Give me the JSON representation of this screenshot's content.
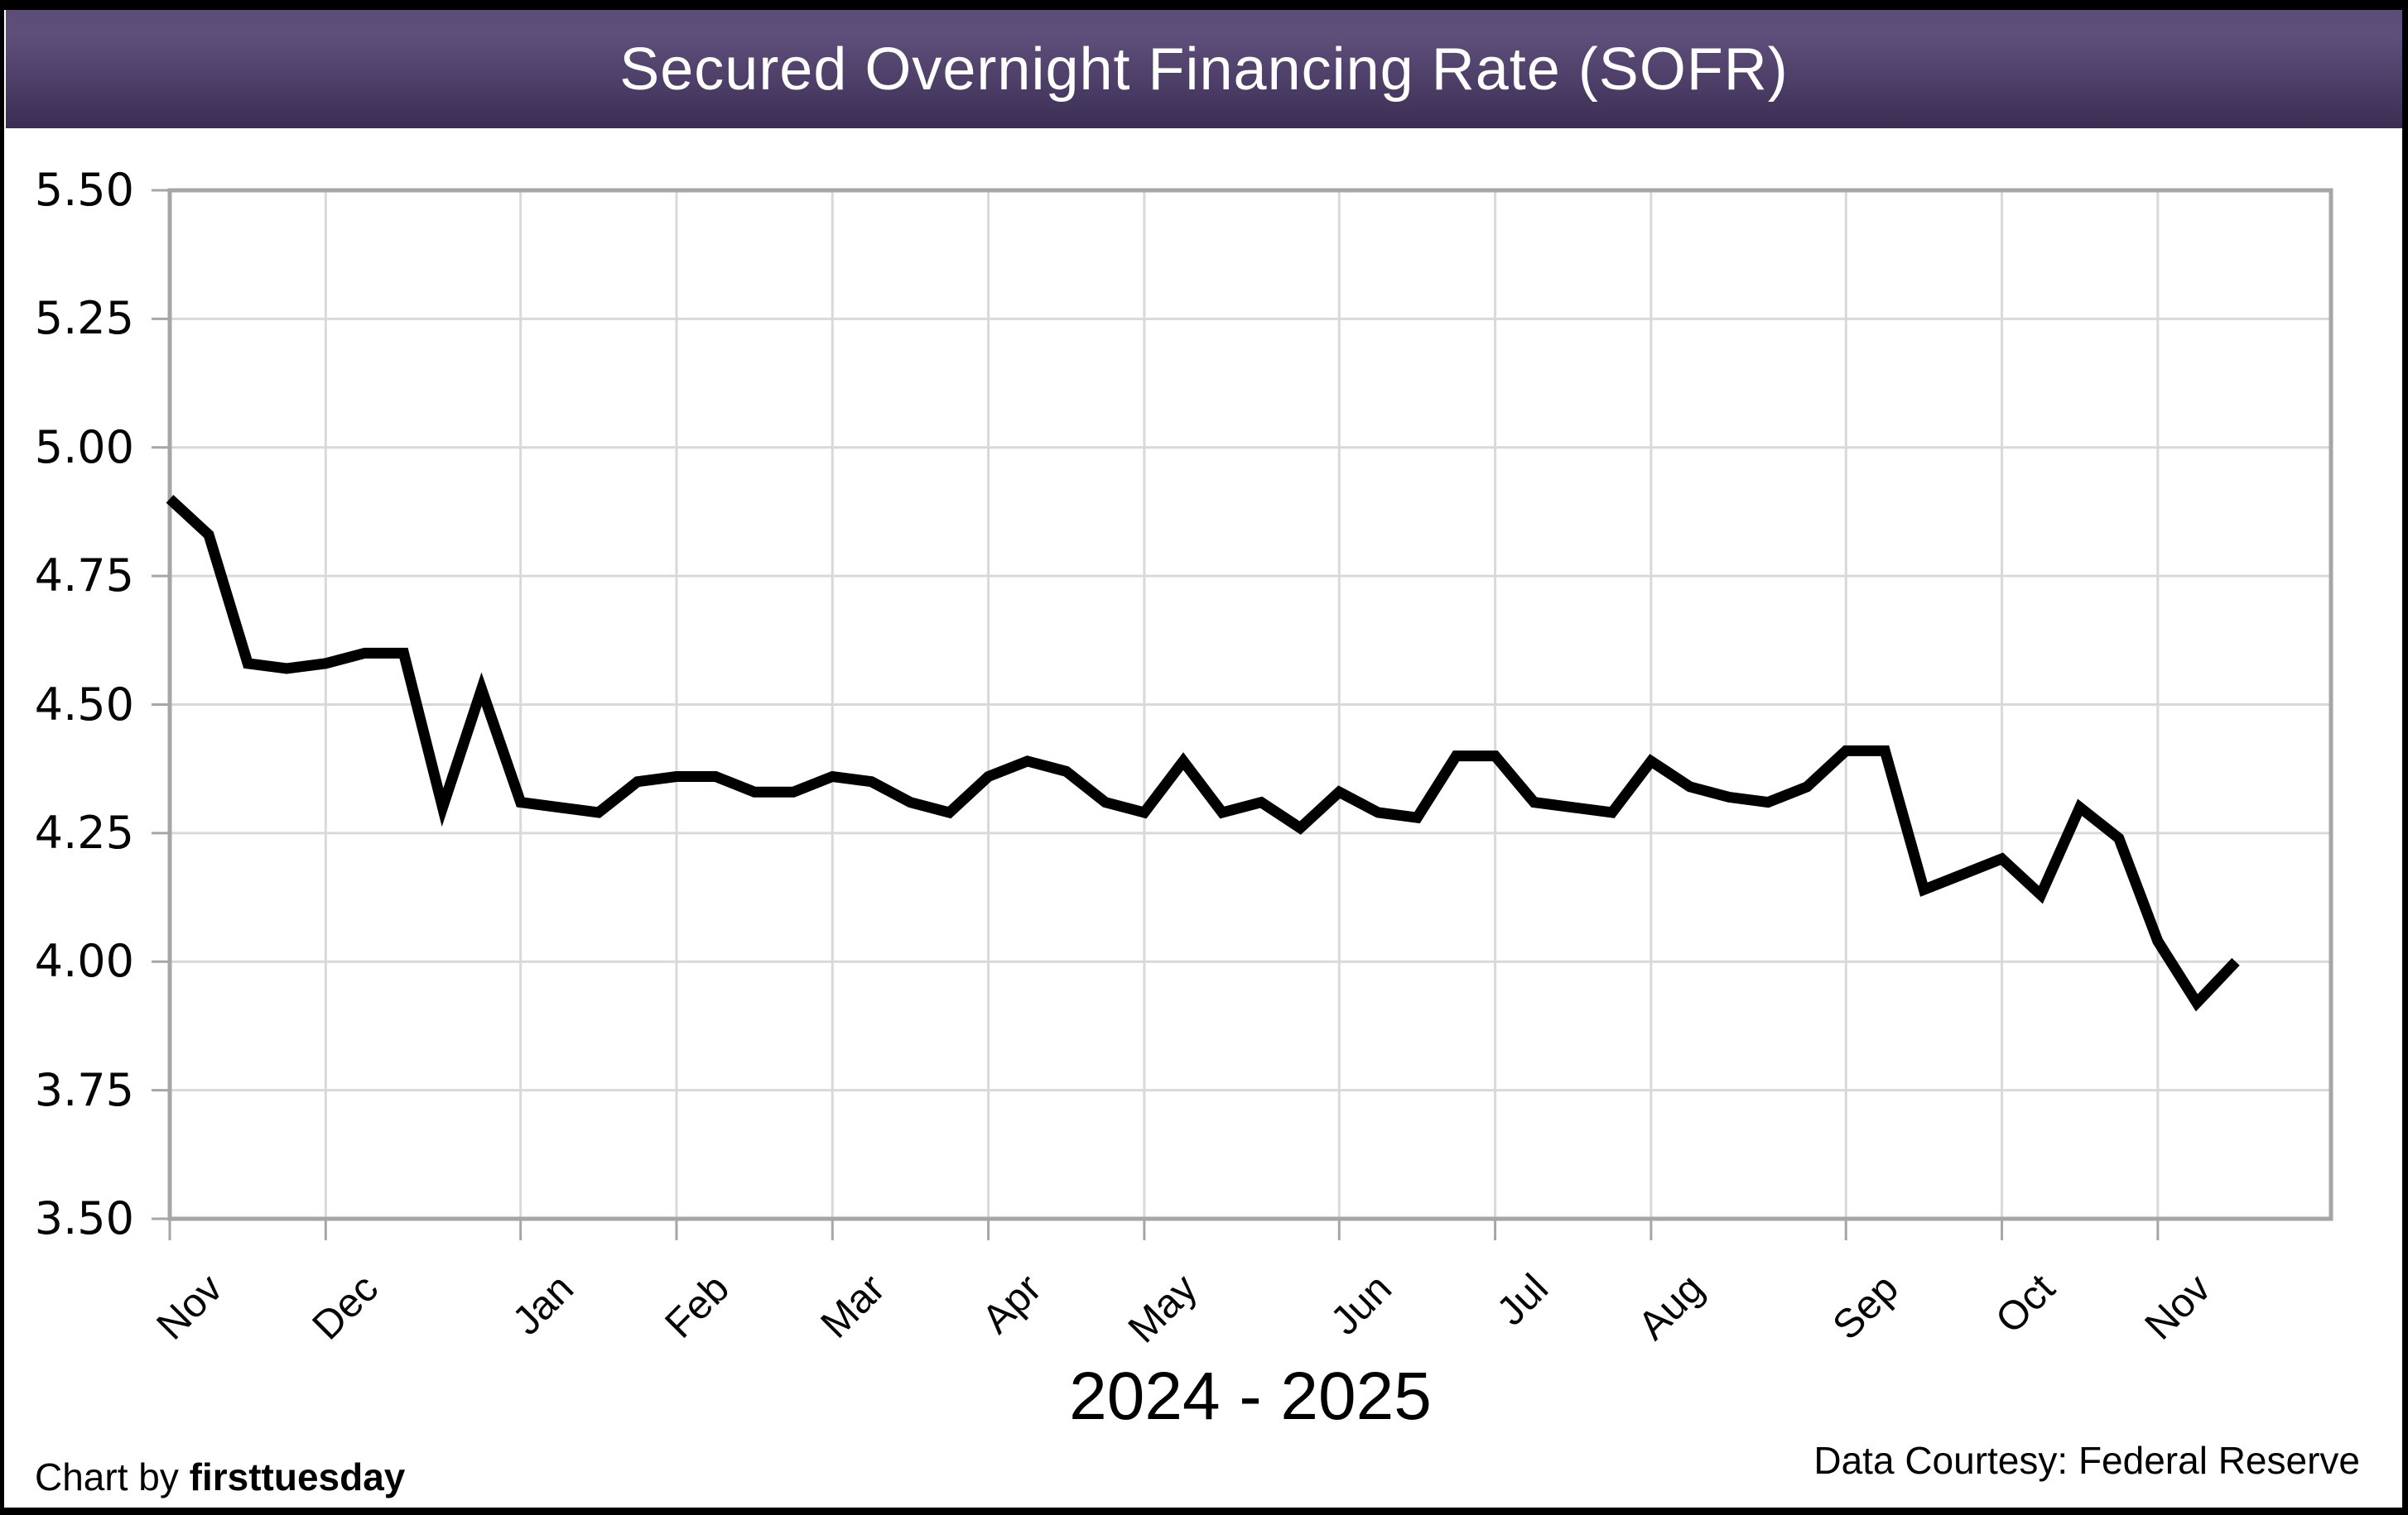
{
  "header": {
    "title": "Secured Overnight Financing Rate (SOFR)"
  },
  "footer": {
    "left_prefix": "Chart by ",
    "left_brand": "firsttuesday",
    "right": "Data Courtesy: Federal Reserve"
  },
  "colors": {
    "header_gradient_top": "#5c4c78",
    "header_gradient_bottom": "#3a2d52",
    "title_text": "#ffffff",
    "line": "#000000",
    "gridline": "#d9d9d9",
    "axis_border": "#a6a6a6",
    "outer_frame": "#000000",
    "label_text": "#050505"
  },
  "chart_data": {
    "type": "line",
    "title": "Secured Overnight Financing Rate (SOFR)",
    "xlabel": "2024 - 2025",
    "ylabel": "",
    "ylim": [
      3.5,
      5.5
    ],
    "ytick_step": 0.25,
    "ytick_labels": [
      "5.50",
      "5.25",
      "5.00",
      "4.75",
      "4.50",
      "4.25",
      "4.00",
      "3.75",
      "3.50"
    ],
    "categories": [
      "Nov",
      "Dec",
      "Jan",
      "Feb",
      "Mar",
      "Apr",
      "May",
      "Jun",
      "Jul",
      "Aug",
      "Sep",
      "Oct",
      "Nov"
    ],
    "month_tick_indices": [
      0,
      4,
      9,
      13,
      17,
      21,
      25,
      30,
      34,
      38,
      43,
      47,
      51
    ],
    "x_unit": "week",
    "grid": true,
    "legend": "none",
    "series": [
      {
        "name": "SOFR",
        "values": [
          4.9,
          4.83,
          4.58,
          4.57,
          4.58,
          4.6,
          4.6,
          4.3,
          4.53,
          4.31,
          4.3,
          4.29,
          4.35,
          4.36,
          4.36,
          4.33,
          4.33,
          4.36,
          4.35,
          4.31,
          4.29,
          4.36,
          4.39,
          4.37,
          4.31,
          4.29,
          4.39,
          4.29,
          4.31,
          4.26,
          4.33,
          4.29,
          4.28,
          4.4,
          4.4,
          4.31,
          4.3,
          4.29,
          4.39,
          4.34,
          4.32,
          4.31,
          4.34,
          4.41,
          4.41,
          4.14,
          4.17,
          4.2,
          4.13,
          4.3,
          4.24,
          4.04,
          3.92,
          4.0
        ]
      }
    ]
  }
}
